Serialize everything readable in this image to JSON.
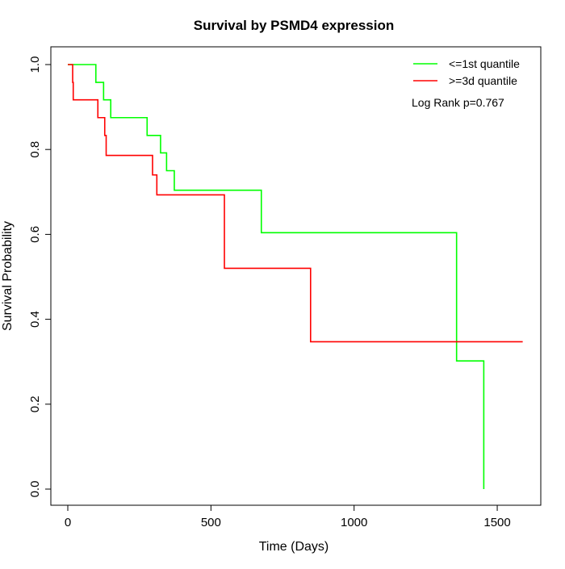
{
  "chart_data": {
    "type": "line",
    "title": "Survival by PSMD4 expression",
    "xlabel": "Time (Days)",
    "ylabel": "Survival Probability",
    "xlim": [
      0,
      1600
    ],
    "ylim": [
      0,
      1
    ],
    "xticks": [
      0,
      500,
      1000,
      1500
    ],
    "yticks": [
      "0.0",
      "0.2",
      "0.4",
      "0.6",
      "0.8",
      "1.0"
    ],
    "grid": false,
    "legend_position": "top-right",
    "annotation": "Log Rank p=0.767",
    "series": [
      {
        "name": "<=1st quantile",
        "color": "#00ff00",
        "step": true,
        "x": [
          0,
          98,
          125,
          150,
          277,
          324,
          345,
          372,
          676,
          1358,
          1453
        ],
        "y": [
          1.0,
          0.958,
          0.917,
          0.875,
          0.833,
          0.792,
          0.75,
          0.704,
          0.604,
          0.302,
          0.0
        ]
      },
      {
        "name": ">=3d quantile",
        "color": "#ff0000",
        "step": true,
        "x": [
          0,
          17,
          19,
          105,
          129,
          134,
          296,
          311,
          547,
          848,
          1589
        ],
        "y": [
          1.0,
          0.958,
          0.917,
          0.875,
          0.833,
          0.786,
          0.74,
          0.693,
          0.52,
          0.347,
          0.347
        ]
      }
    ]
  }
}
